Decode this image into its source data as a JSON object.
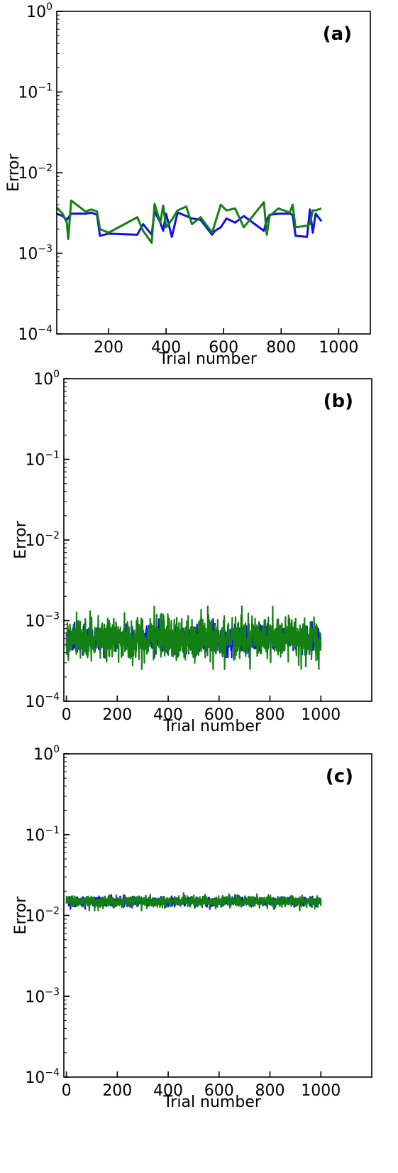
{
  "colors": {
    "series_blue": "#1010e6",
    "series_green": "#138013",
    "axes": "#000000"
  },
  "chart_data": [
    {
      "type": "line",
      "panel_label": "(a)",
      "xlabel": "Trial number",
      "ylabel": "Error",
      "yscale": "log",
      "xlim": [
        20,
        1110
      ],
      "ylim": [
        0.0001,
        1
      ],
      "xticks": [
        200,
        400,
        600,
        800,
        1000
      ],
      "yticks": [
        0.0001,
        0.001,
        0.01,
        0.1,
        1
      ],
      "ytick_labels": [
        {
          "base": "10",
          "exp": "−4"
        },
        {
          "base": "10",
          "exp": "−3"
        },
        {
          "base": "10",
          "exp": "−2"
        },
        {
          "base": "10",
          "exp": "−1"
        },
        {
          "base": "10",
          "exp": "0"
        }
      ],
      "grid": false,
      "series": [
        {
          "color": "#1010e6",
          "x": [
            20,
            40,
            55,
            70,
            120,
            140,
            160,
            170,
            200,
            300,
            320,
            350,
            360,
            380,
            390,
            400,
            420,
            440,
            470,
            490,
            520,
            560,
            570,
            590,
            610,
            640,
            670,
            740,
            750,
            760,
            790,
            830,
            840,
            850,
            890,
            900,
            910,
            920,
            940
          ],
          "y": [
            0.0031,
            0.0029,
            0.0026,
            0.0031,
            0.0031,
            0.0032,
            0.003,
            0.00165,
            0.00175,
            0.0017,
            0.0023,
            0.0017,
            0.0033,
            0.0024,
            0.0019,
            0.0031,
            0.0016,
            0.0032,
            0.0029,
            0.0027,
            0.0026,
            0.0017,
            0.0019,
            0.0021,
            0.0027,
            0.0024,
            0.0029,
            0.0019,
            0.0026,
            0.003,
            0.0031,
            0.0031,
            0.003,
            0.00165,
            0.0016,
            0.0035,
            0.0018,
            0.0031,
            0.0025
          ]
        },
        {
          "color": "#138013",
          "x": [
            20,
            40,
            55,
            60,
            70,
            120,
            140,
            160,
            170,
            200,
            300,
            320,
            350,
            360,
            380,
            390,
            400,
            420,
            440,
            470,
            490,
            520,
            560,
            590,
            610,
            640,
            670,
            740,
            750,
            760,
            790,
            830,
            840,
            850,
            890,
            900,
            910,
            920,
            940
          ],
          "y": [
            0.0037,
            0.0031,
            0.0024,
            0.0015,
            0.0045,
            0.0033,
            0.0035,
            0.0033,
            0.002,
            0.0018,
            0.0028,
            0.0019,
            0.00135,
            0.0041,
            0.0024,
            0.0039,
            0.0021,
            0.0026,
            0.0034,
            0.0038,
            0.0023,
            0.0028,
            0.0018,
            0.004,
            0.0034,
            0.0036,
            0.0021,
            0.0043,
            0.0017,
            0.0029,
            0.0036,
            0.0032,
            0.004,
            0.0021,
            0.0022,
            0.0023,
            0.0034,
            0.0034,
            0.0036
          ]
        }
      ]
    },
    {
      "type": "line",
      "panel_label": "(b)",
      "xlabel": "Trial number",
      "ylabel": "Error",
      "yscale": "log",
      "xlim": [
        -10,
        1200
      ],
      "ylim": [
        0.0001,
        1
      ],
      "xticks": [
        0,
        200,
        400,
        600,
        800,
        1000
      ],
      "yticks": [
        0.0001,
        0.001,
        0.01,
        0.1,
        1
      ],
      "ytick_labels": [
        {
          "base": "10",
          "exp": "−4"
        },
        {
          "base": "10",
          "exp": "−3"
        },
        {
          "base": "10",
          "exp": "−2"
        },
        {
          "base": "10",
          "exp": "−1"
        },
        {
          "base": "10",
          "exp": "0"
        }
      ],
      "grid": false,
      "series_noise": [
        {
          "color": "#1010e6",
          "x_range": [
            0,
            1000
          ],
          "median": 0.0006,
          "min": 0.00035,
          "max": 0.00105,
          "n": 1000
        },
        {
          "color": "#138013",
          "x_range": [
            0,
            1000
          ],
          "median": 0.0006,
          "min": 0.00025,
          "max": 0.0015,
          "n": 1000
        }
      ]
    },
    {
      "type": "line",
      "panel_label": "(c)",
      "xlabel": "Trial number",
      "ylabel": "Error",
      "yscale": "log",
      "xlim": [
        -10,
        1200
      ],
      "ylim": [
        0.0001,
        1
      ],
      "xticks": [
        0,
        200,
        400,
        600,
        800,
        1000
      ],
      "yticks": [
        0.0001,
        0.001,
        0.01,
        0.1,
        1
      ],
      "ytick_labels": [
        {
          "base": "10",
          "exp": "−4"
        },
        {
          "base": "10",
          "exp": "−3"
        },
        {
          "base": "10",
          "exp": "−2"
        },
        {
          "base": "10",
          "exp": "−1"
        },
        {
          "base": "10",
          "exp": "0"
        }
      ],
      "grid": false,
      "series_noise": [
        {
          "color": "#1010e6",
          "x_range": [
            0,
            1000
          ],
          "median": 0.015,
          "min": 0.012,
          "max": 0.018,
          "n": 1000
        },
        {
          "color": "#138013",
          "x_range": [
            0,
            1000
          ],
          "median": 0.015,
          "min": 0.0115,
          "max": 0.019,
          "n": 1000
        }
      ]
    }
  ]
}
